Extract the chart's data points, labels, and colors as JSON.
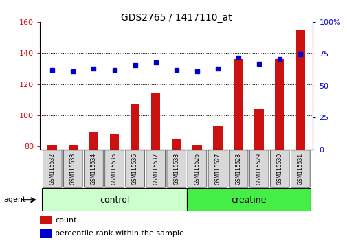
{
  "title": "GDS2765 / 1417110_at",
  "samples": [
    "GSM115532",
    "GSM115533",
    "GSM115534",
    "GSM115535",
    "GSM115536",
    "GSM115537",
    "GSM115538",
    "GSM115526",
    "GSM115527",
    "GSM115528",
    "GSM115529",
    "GSM115530",
    "GSM115531"
  ],
  "counts": [
    81,
    81,
    89,
    88,
    107,
    114,
    85,
    81,
    93,
    136,
    104,
    136,
    155
  ],
  "percentile_ranks": [
    129,
    128,
    130,
    129,
    132,
    134,
    129,
    128,
    130,
    137,
    133,
    136,
    139
  ],
  "groups": [
    "control",
    "control",
    "control",
    "control",
    "control",
    "control",
    "control",
    "creatine",
    "creatine",
    "creatine",
    "creatine",
    "creatine",
    "creatine"
  ],
  "bar_color": "#cc1111",
  "dot_color": "#0000cc",
  "ylim_left": [
    78,
    160
  ],
  "ylim_right": [
    0,
    100
  ],
  "yticks_left": [
    80,
    100,
    120,
    140,
    160
  ],
  "yticks_right": [
    0,
    25,
    50,
    75,
    100
  ],
  "grid_yticks": [
    100,
    120,
    140
  ],
  "agent_label": "agent",
  "legend_count_label": "count",
  "legend_pct_label": "percentile rank within the sample",
  "bg_color": "#ffffff",
  "tick_label_color_left": "#cc1111",
  "tick_label_color_right": "#0000cc",
  "title_color": "#000000",
  "ctrl_color": "#ccffcc",
  "creat_color": "#44ee44",
  "bar_bottom": 78
}
